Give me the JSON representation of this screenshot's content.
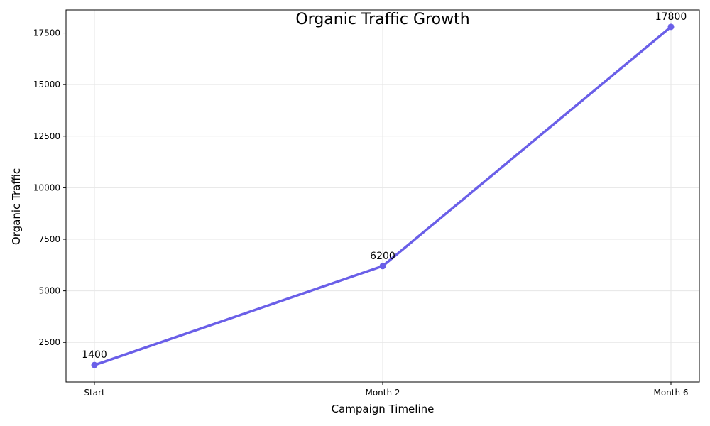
{
  "chart_data": {
    "type": "line",
    "title": "Organic Traffic Growth",
    "xlabel": "Campaign Timeline",
    "ylabel": "Organic Traffic",
    "categories": [
      "Start",
      "Month 2",
      "Month 6"
    ],
    "series": [
      {
        "values": [
          1400,
          6200,
          17800
        ],
        "color": "#6a5fe8"
      }
    ],
    "data_labels": [
      "1400",
      "6200",
      "17800"
    ],
    "ylim": [
      580,
      18620
    ],
    "y_ticks": [
      2500,
      5000,
      7500,
      10000,
      12500,
      15000,
      17500
    ],
    "y_tick_labels": [
      "2500",
      "5000",
      "7500",
      "10000",
      "12500",
      "15000",
      "17500"
    ],
    "grid": true,
    "legend": "none"
  }
}
